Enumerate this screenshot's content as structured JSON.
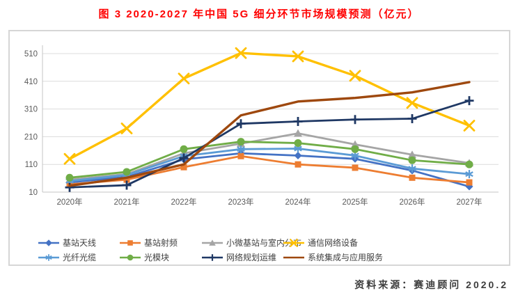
{
  "figure": {
    "title": "图 3 2020-2027 年中国 5G 细分环节市场规模预测（亿元）",
    "title_color": "#FF0000",
    "source": "资料来源：赛迪顾问  2020.2"
  },
  "chart_data": {
    "type": "line",
    "title": "2020-2027 年中国 5G 细分环节市场规模预测（亿元）",
    "categories": [
      "2020年",
      "2021年",
      "2022年",
      "2023年",
      "2024年",
      "2025年",
      "2026年",
      "2027年"
    ],
    "y_ticks": [
      10,
      110,
      210,
      310,
      410,
      510
    ],
    "ylim": [
      10,
      560
    ],
    "grid": true,
    "legend_position": "bottom",
    "legend_columns": 4,
    "axis_text_color": "#595959",
    "gridline_color": "#dcdcdc",
    "series": [
      {
        "name": "基站天线",
        "color": "#4472C4",
        "marker": "diamond",
        "values": [
          45,
          65,
          128,
          150,
          142,
          130,
          88,
          30
        ]
      },
      {
        "name": "基站射频",
        "color": "#ED7D31",
        "marker": "square",
        "values": [
          38,
          55,
          100,
          140,
          110,
          98,
          62,
          45
        ]
      },
      {
        "name": "小微基站与室内分布",
        "color": "#A5A5A5",
        "marker": "triangle",
        "values": [
          55,
          75,
          150,
          185,
          222,
          182,
          145,
          115
        ]
      },
      {
        "name": "通信网络设备",
        "color": "#FFC000",
        "marker": "x",
        "values": [
          130,
          240,
          420,
          512,
          500,
          430,
          332,
          250
        ]
      },
      {
        "name": "光纤光缆",
        "color": "#5B9BD5",
        "marker": "asterisk",
        "values": [
          50,
          72,
          140,
          165,
          167,
          142,
          95,
          75
        ]
      },
      {
        "name": "光模块",
        "color": "#70AD47",
        "marker": "circle",
        "values": [
          62,
          83,
          165,
          192,
          187,
          165,
          125,
          110
        ]
      },
      {
        "name": "网络规划运维",
        "color": "#1F3864",
        "marker": "plus",
        "values": [
          27,
          35,
          133,
          257,
          265,
          272,
          275,
          340
        ]
      },
      {
        "name": "系统集成与应用服务",
        "color": "#9E480E",
        "marker": "none",
        "values": [
          33,
          62,
          110,
          287,
          337,
          350,
          370,
          407
        ]
      }
    ]
  }
}
